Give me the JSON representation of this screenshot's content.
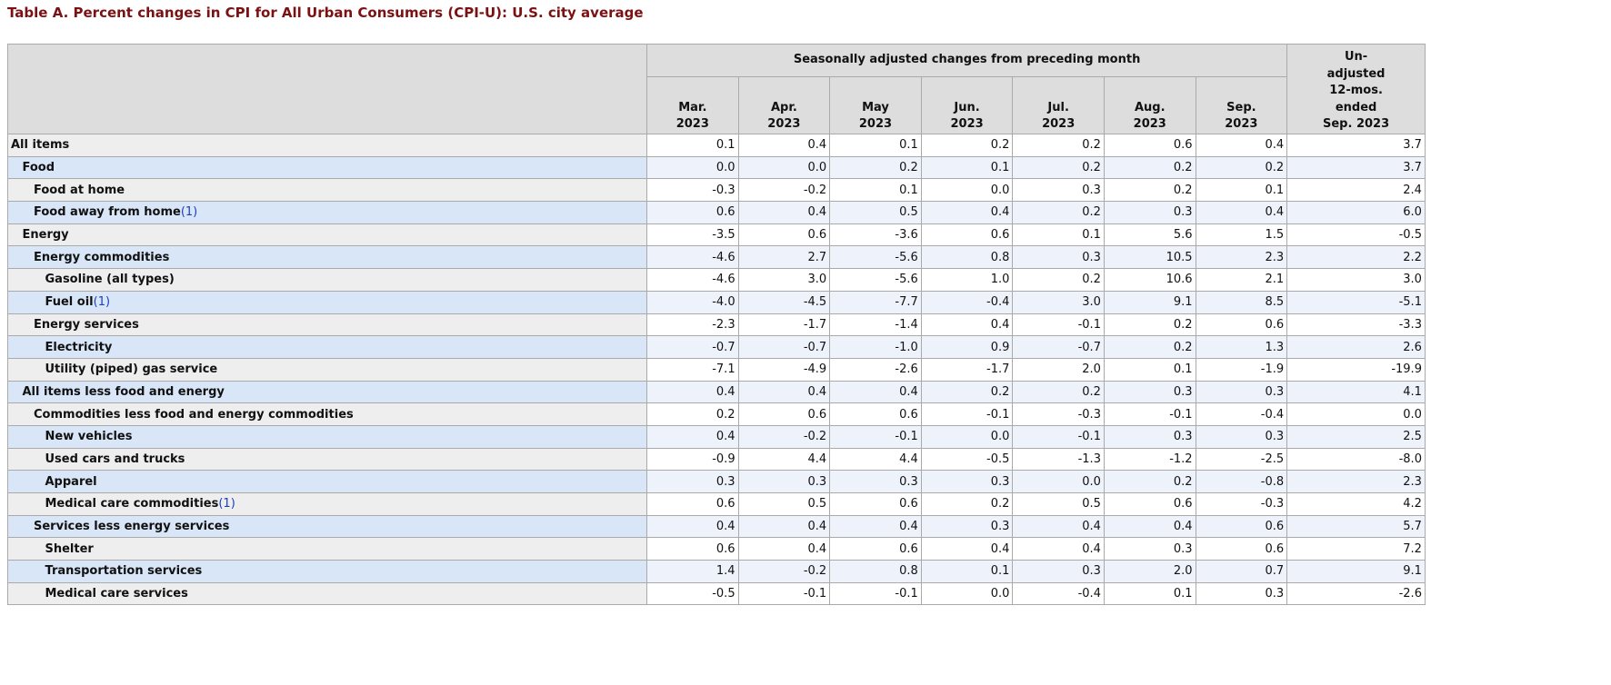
{
  "header": {
    "title": "Table A. Percent changes in CPI for All Urban Consumers (CPI-U): U.S. city average"
  },
  "table": {
    "group_header": "Seasonally adjusted changes from preceding month",
    "columns": [
      [
        "Mar.",
        "2023"
      ],
      [
        "Apr.",
        "2023"
      ],
      [
        "May",
        "2023"
      ],
      [
        "Jun.",
        "2023"
      ],
      [
        "Jul.",
        "2023"
      ],
      [
        "Aug.",
        "2023"
      ],
      [
        "Sep.",
        "2023"
      ]
    ],
    "last_column": [
      "Un-",
      "adjusted",
      "12-mos.",
      "ended",
      "Sep. 2023"
    ],
    "rows": [
      {
        "label": "All items",
        "values": [
          "0.1",
          "0.4",
          "0.1",
          "0.2",
          "0.2",
          "0.6",
          "0.4",
          "3.7"
        ]
      },
      {
        "label": "Food",
        "values": [
          "0.0",
          "0.0",
          "0.2",
          "0.1",
          "0.2",
          "0.2",
          "0.2",
          "3.7"
        ]
      },
      {
        "label": "Food at home",
        "values": [
          "-0.3",
          "-0.2",
          "0.1",
          "0.0",
          "0.3",
          "0.2",
          "0.1",
          "2.4"
        ]
      },
      {
        "label": "Food away from home",
        "footnote": "(1)",
        "values": [
          "0.6",
          "0.4",
          "0.5",
          "0.4",
          "0.2",
          "0.3",
          "0.4",
          "6.0"
        ]
      },
      {
        "label": "Energy",
        "values": [
          "-3.5",
          "0.6",
          "-3.6",
          "0.6",
          "0.1",
          "5.6",
          "1.5",
          "-0.5"
        ]
      },
      {
        "label": "Energy commodities",
        "values": [
          "-4.6",
          "2.7",
          "-5.6",
          "0.8",
          "0.3",
          "10.5",
          "2.3",
          "2.2"
        ]
      },
      {
        "label": "Gasoline (all types)",
        "values": [
          "-4.6",
          "3.0",
          "-5.6",
          "1.0",
          "0.2",
          "10.6",
          "2.1",
          "3.0"
        ]
      },
      {
        "label": "Fuel oil",
        "footnote": "(1)",
        "values": [
          "-4.0",
          "-4.5",
          "-7.7",
          "-0.4",
          "3.0",
          "9.1",
          "8.5",
          "-5.1"
        ]
      },
      {
        "label": "Energy services",
        "values": [
          "-2.3",
          "-1.7",
          "-1.4",
          "0.4",
          "-0.1",
          "0.2",
          "0.6",
          "-3.3"
        ]
      },
      {
        "label": "Electricity",
        "values": [
          "-0.7",
          "-0.7",
          "-1.0",
          "0.9",
          "-0.7",
          "0.2",
          "1.3",
          "2.6"
        ]
      },
      {
        "label": "Utility (piped) gas service",
        "values": [
          "-7.1",
          "-4.9",
          "-2.6",
          "-1.7",
          "2.0",
          "0.1",
          "-1.9",
          "-19.9"
        ]
      },
      {
        "label": "All items less food and energy",
        "values": [
          "0.4",
          "0.4",
          "0.4",
          "0.2",
          "0.2",
          "0.3",
          "0.3",
          "4.1"
        ]
      },
      {
        "label": "Commodities less food and energy commodities",
        "values": [
          "0.2",
          "0.6",
          "0.6",
          "-0.1",
          "-0.3",
          "-0.1",
          "-0.4",
          "0.0"
        ]
      },
      {
        "label": "New vehicles",
        "values": [
          "0.4",
          "-0.2",
          "-0.1",
          "0.0",
          "-0.1",
          "0.3",
          "0.3",
          "2.5"
        ]
      },
      {
        "label": "Used cars and trucks",
        "values": [
          "-0.9",
          "4.4",
          "4.4",
          "-0.5",
          "-1.3",
          "-1.2",
          "-2.5",
          "-8.0"
        ]
      },
      {
        "label": "Apparel",
        "values": [
          "0.3",
          "0.3",
          "0.3",
          "0.3",
          "0.0",
          "0.2",
          "-0.8",
          "2.3"
        ]
      },
      {
        "label": "Medical care commodities",
        "footnote": "(1)",
        "values": [
          "0.6",
          "0.5",
          "0.6",
          "0.2",
          "0.5",
          "0.6",
          "-0.3",
          "4.2"
        ]
      },
      {
        "label": "Services less energy services",
        "values": [
          "0.4",
          "0.4",
          "0.4",
          "0.3",
          "0.4",
          "0.4",
          "0.6",
          "5.7"
        ]
      },
      {
        "label": "Shelter",
        "values": [
          "0.6",
          "0.4",
          "0.6",
          "0.4",
          "0.4",
          "0.3",
          "0.6",
          "7.2"
        ]
      },
      {
        "label": "Transportation services",
        "values": [
          "1.4",
          "-0.2",
          "0.8",
          "0.1",
          "0.3",
          "2.0",
          "0.7",
          "9.1"
        ]
      },
      {
        "label": "Medical care services",
        "values": [
          "-0.5",
          "-0.1",
          "-0.1",
          "0.0",
          "-0.4",
          "0.1",
          "0.3",
          "-2.6"
        ]
      }
    ]
  }
}
